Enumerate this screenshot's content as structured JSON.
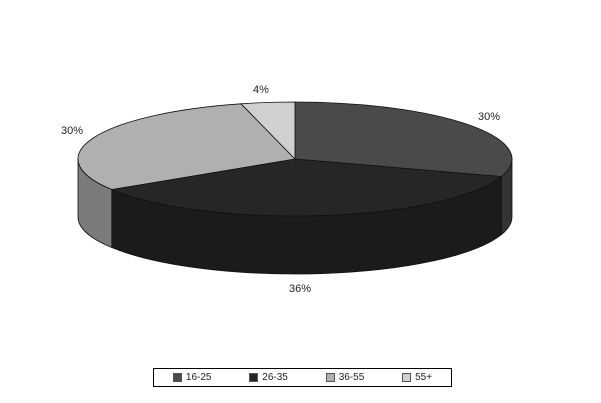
{
  "chart_data": {
    "type": "pie",
    "style": "3d",
    "categories": [
      "16-25",
      "26-35",
      "36-55",
      "55+"
    ],
    "values": [
      30,
      36,
      30,
      4
    ],
    "value_labels": [
      "30%",
      "36%",
      "30%",
      "4%"
    ],
    "colors": [
      "#4a4a4a",
      "#262626",
      "#b0b0b0",
      "#d0d0d0"
    ],
    "title": "",
    "legend_position": "bottom",
    "grid": false
  }
}
